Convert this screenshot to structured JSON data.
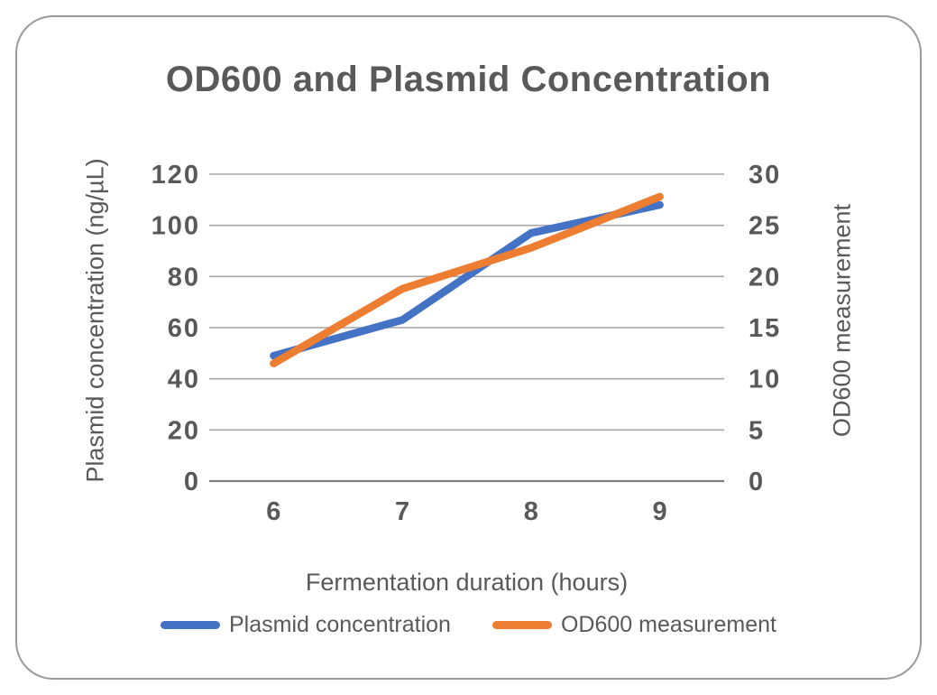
{
  "chart_data": {
    "type": "line",
    "title": "OD600 and Plasmid Concentration",
    "xlabel": "Fermentation duration (hours)",
    "ylabel_left": "Plasmid concentration (ng/µL)",
    "ylabel_right": "OD600 measurement",
    "categories": [
      6,
      7,
      8,
      9
    ],
    "series": [
      {
        "name": "Plasmid concentration",
        "axis": "left",
        "color": "#4472C4",
        "values": [
          49,
          63,
          97,
          108
        ]
      },
      {
        "name": "OD600 measurement",
        "axis": "right",
        "color": "#ED7D31",
        "values": [
          11.5,
          18.8,
          22.8,
          27.8
        ]
      }
    ],
    "ylim_left": [
      0,
      120
    ],
    "yticks_left": [
      0,
      20,
      40,
      60,
      80,
      100,
      120
    ],
    "ylim_right": [
      0,
      30
    ],
    "yticks_right": [
      0,
      5,
      10,
      15,
      20,
      25,
      30
    ],
    "grid": true,
    "legend_position": "bottom"
  },
  "style": {
    "grid_color": "#a6a6a6",
    "axis_line_color": "#7f7f7f",
    "text_color": "#595959"
  }
}
